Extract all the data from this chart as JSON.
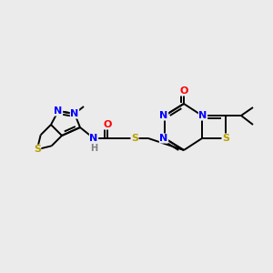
{
  "background_color": "#ebebeb",
  "bond_color": "#000000",
  "atom_colors": {
    "N": "#0000ff",
    "S": "#b8a000",
    "O": "#ff0000",
    "C": "#000000",
    "H": "#808080"
  },
  "figsize": [
    3.0,
    3.0
  ],
  "dpi": 100
}
